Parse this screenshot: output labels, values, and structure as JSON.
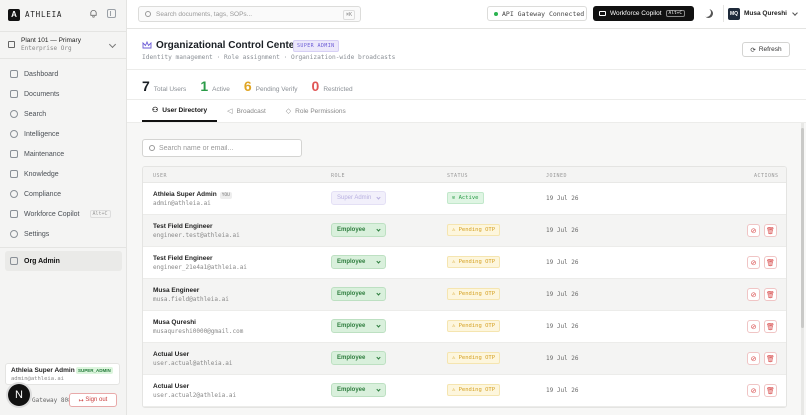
{
  "app": {
    "brand": "ATHLEIA",
    "logo_letter": "A"
  },
  "org": {
    "name": "Plant 101 — Primary",
    "type": "Enterprise Org"
  },
  "nav": [
    {
      "label": "Dashboard",
      "icon": "grid-icon"
    },
    {
      "label": "Documents",
      "icon": "file-icon"
    },
    {
      "label": "Search",
      "icon": "search-icon"
    },
    {
      "label": "Intelligence",
      "icon": "brain-icon"
    },
    {
      "label": "Maintenance",
      "icon": "wrench-icon"
    },
    {
      "label": "Knowledge",
      "icon": "book-icon"
    },
    {
      "label": "Compliance",
      "icon": "shield-check-icon"
    },
    {
      "label": "Workforce Copilot",
      "icon": "copilot-icon",
      "kbd": "Alt+C"
    },
    {
      "label": "Settings",
      "icon": "gear-icon"
    }
  ],
  "nav_admin": {
    "label": "Org Admin",
    "icon": "crown-icon"
  },
  "sidebar_user": {
    "name": "Athleia Super Admin",
    "badge": "SUPER_ADMIN",
    "email": "admin@athleia.ai"
  },
  "sidebar_footer": {
    "gateway_text": "Gateway 8080…",
    "signout_label": "Sign out",
    "avatar_letter": "N"
  },
  "topbar": {
    "search_placeholder": "Search documents, tags, SOPs...",
    "search_kbd": "⌘K",
    "gateway_status": "API Gateway Connected",
    "copilot_label": "Workforce Copilot",
    "copilot_kbd": "Alt+C",
    "user_initials": "MQ",
    "user_name": "Musa Qureshi"
  },
  "page": {
    "title": "Organizational Control Center",
    "badge": "SUPER ADMIN",
    "subtitle": "Identity management · Role assignment · Organization-wide broadcasts",
    "refresh_label": "Refresh"
  },
  "stats": [
    {
      "value": "7",
      "label": "Total Users",
      "color": "#1a1f24"
    },
    {
      "value": "1",
      "label": "Active",
      "color": "#2a9b47"
    },
    {
      "value": "6",
      "label": "Pending Verify",
      "color": "#e0a524"
    },
    {
      "value": "0",
      "label": "Restricted",
      "color": "#e05555"
    }
  ],
  "tabs": [
    {
      "label": "User Directory",
      "icon": "users-icon",
      "active": true
    },
    {
      "label": "Broadcast",
      "icon": "megaphone-icon",
      "active": false
    },
    {
      "label": "Role Permissions",
      "icon": "shield-icon",
      "active": false
    }
  ],
  "user_search": {
    "placeholder": "Search name or email..."
  },
  "table": {
    "columns": [
      "USER",
      "ROLE",
      "STATUS",
      "JOINED",
      "ACTIONS"
    ],
    "rows": [
      {
        "name": "Athleia Super Admin",
        "you": "YOU",
        "email": "admin@athleia.ai",
        "role": "Super Admin",
        "role_disabled": true,
        "status": "Active",
        "status_type": "active",
        "joined": "19 Jul 26",
        "actions": false
      },
      {
        "name": "Test Field Engineer",
        "email": "engineer.test@athleia.ai",
        "role": "Employee",
        "status": "Pending OTP",
        "status_type": "pending",
        "joined": "19 Jul 26",
        "actions": true
      },
      {
        "name": "Test Field Engineer",
        "email": "engineer_21e4a1@athleia.ai",
        "role": "Employee",
        "status": "Pending OTP",
        "status_type": "pending",
        "joined": "19 Jul 26",
        "actions": true
      },
      {
        "name": "Musa Engineer",
        "email": "musa.field@athleia.ai",
        "role": "Employee",
        "status": "Pending OTP",
        "status_type": "pending",
        "joined": "19 Jul 26",
        "actions": true
      },
      {
        "name": "Musa Qureshi",
        "email": "musaqureshi0000@gmail.com",
        "role": "Employee",
        "status": "Pending OTP",
        "status_type": "pending",
        "joined": "19 Jul 26",
        "actions": true
      },
      {
        "name": "Actual User",
        "email": "user.actual@athleia.ai",
        "role": "Employee",
        "status": "Pending OTP",
        "status_type": "pending",
        "joined": "19 Jul 26",
        "actions": true
      },
      {
        "name": "Actual User",
        "email": "user.actual2@athleia.ai",
        "role": "Employee",
        "status": "Pending OTP",
        "status_type": "pending",
        "joined": "19 Jul 26",
        "actions": true
      }
    ]
  }
}
